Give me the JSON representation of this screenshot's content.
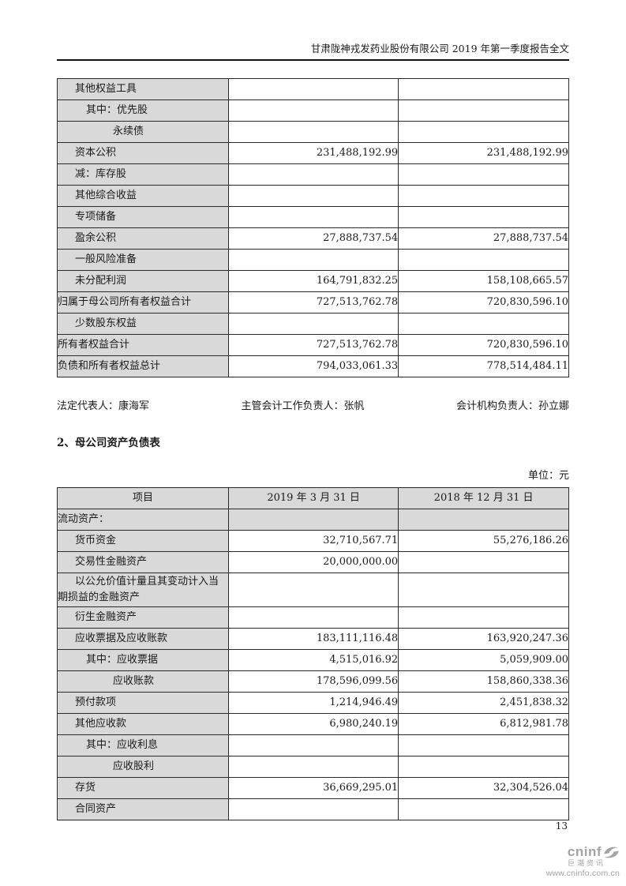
{
  "header": {
    "title": "甘肃陇神戎发药业股份有限公司 2019 年第一季度报告全文"
  },
  "table1": {
    "rows": [
      {
        "label": "其他权益工具",
        "indent": 1,
        "col1": "",
        "col2": ""
      },
      {
        "label": "其中：优先股",
        "indent": 2,
        "col1": "",
        "col2": ""
      },
      {
        "label": "永续债",
        "indent": 3,
        "col1": "",
        "col2": ""
      },
      {
        "label": "资本公积",
        "indent": 1,
        "col1": "231,488,192.99",
        "col2": "231,488,192.99"
      },
      {
        "label": "减：库存股",
        "indent": 1,
        "col1": "",
        "col2": ""
      },
      {
        "label": "其他综合收益",
        "indent": 1,
        "col1": "",
        "col2": ""
      },
      {
        "label": "专项储备",
        "indent": 1,
        "col1": "",
        "col2": ""
      },
      {
        "label": "盈余公积",
        "indent": 1,
        "col1": "27,888,737.54",
        "col2": "27,888,737.54"
      },
      {
        "label": "一般风险准备",
        "indent": 1,
        "col1": "",
        "col2": ""
      },
      {
        "label": "未分配利润",
        "indent": 1,
        "col1": "164,791,832.25",
        "col2": "158,108,665.57"
      },
      {
        "label": "归属于母公司所有者权益合计",
        "indent": 0,
        "col1": "727,513,762.78",
        "col2": "720,830,596.10"
      },
      {
        "label": "少数股东权益",
        "indent": 1,
        "col1": "",
        "col2": ""
      },
      {
        "label": "所有者权益合计",
        "indent": 0,
        "col1": "727,513,762.78",
        "col2": "720,830,596.10"
      },
      {
        "label": "负债和所有者权益总计",
        "indent": 0,
        "col1": "794,033,061.33",
        "col2": "778,514,484.11"
      }
    ]
  },
  "signatories": {
    "legal_representative": "法定代表人：康海军",
    "chief_accounting_officer": "主管会计工作负责人：张帆",
    "accounting_department_head": "会计机构负责人：孙立娜"
  },
  "section": {
    "title": "2、母公司资产负债表",
    "unit": "单位：元"
  },
  "table2": {
    "headers": [
      "项目",
      "2019 年 3 月 31 日",
      "2018 年 12 月 31 日"
    ],
    "rows": [
      {
        "label": "流动资产：",
        "indent": 0,
        "section": true,
        "col1": "",
        "col2": ""
      },
      {
        "label": "货币资金",
        "indent": 1,
        "col1": "32,710,567.71",
        "col2": "55,276,186.26"
      },
      {
        "label": "交易性金融资产",
        "indent": 1,
        "col1": "20,000,000.00",
        "col2": ""
      },
      {
        "label": "以公允价值计量且其变动计入当期损益的金融资产",
        "indent": 1,
        "col1": "",
        "col2": ""
      },
      {
        "label": "衍生金融资产",
        "indent": 1,
        "col1": "",
        "col2": ""
      },
      {
        "label": "应收票据及应收账款",
        "indent": 1,
        "col1": "183,111,116.48",
        "col2": "163,920,247.36"
      },
      {
        "label": "其中：应收票据",
        "indent": 2,
        "col1": "4,515,016.92",
        "col2": "5,059,909.00"
      },
      {
        "label": "应收账款",
        "indent": 3,
        "col1": "178,596,099.56",
        "col2": "158,860,338.36"
      },
      {
        "label": "预付款项",
        "indent": 1,
        "col1": "1,214,946.49",
        "col2": "2,451,838.32"
      },
      {
        "label": "其他应收款",
        "indent": 1,
        "col1": "6,980,240.19",
        "col2": "6,812,981.78"
      },
      {
        "label": "其中：应收利息",
        "indent": 2,
        "col1": "",
        "col2": ""
      },
      {
        "label": "应收股利",
        "indent": 3,
        "col1": "",
        "col2": ""
      },
      {
        "label": "存货",
        "indent": 1,
        "col1": "36,669,295.01",
        "col2": "32,304,526.04"
      },
      {
        "label": "合同资产",
        "indent": 1,
        "col1": "",
        "col2": ""
      }
    ]
  },
  "footer": {
    "page_number": "13",
    "logo_wordmark": "cninf",
    "logo_subtitle": "巨潮资讯",
    "logo_url": "www.cninfo.com.cn"
  },
  "colors": {
    "table_shading": "#d9d9d9",
    "logo_gray": "#a3a3a3",
    "text": "#1a1a1a"
  }
}
